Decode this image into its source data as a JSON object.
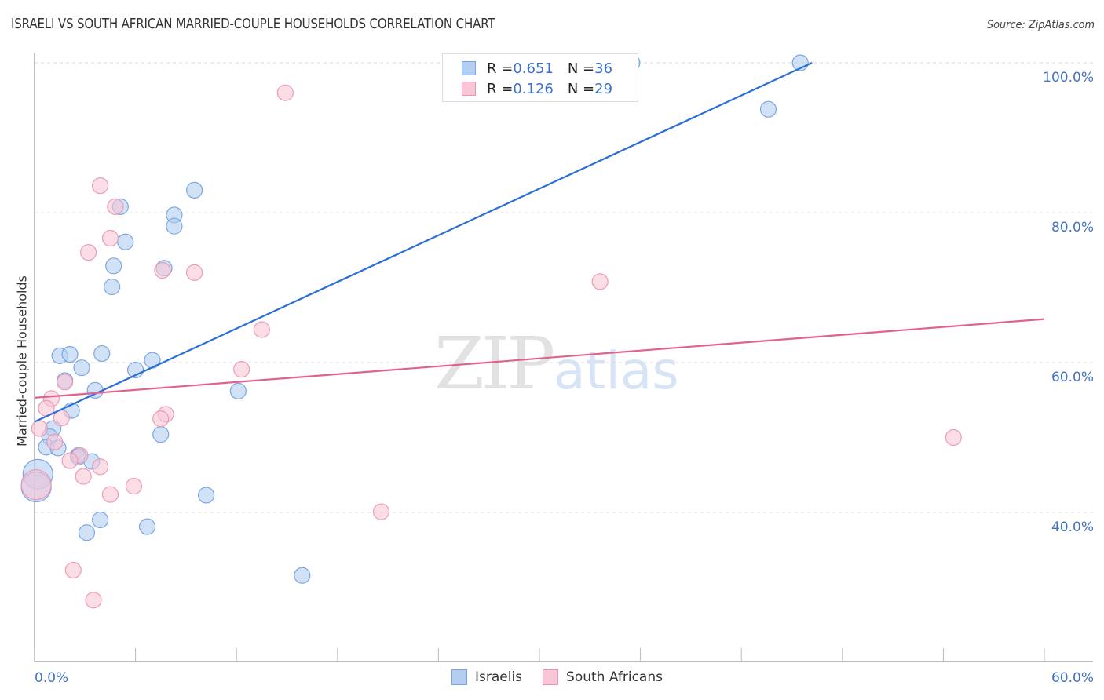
{
  "header": {
    "title": "ISRAELI VS SOUTH AFRICAN MARRIED-COUPLE HOUSEHOLDS CORRELATION CHART",
    "source": "Source: ZipAtlas.com"
  },
  "legend_box": {
    "rows": [
      {
        "r_label": "R = ",
        "r_value": "0.651",
        "n_label": "N = ",
        "n_value": "36",
        "color": "#b3cef2",
        "border": "#7ba3e0"
      },
      {
        "r_label": "R = ",
        "r_value": "0.126",
        "n_label": "N = ",
        "n_value": "29",
        "color": "#f9c6d5",
        "border": "#ea93ae"
      }
    ]
  },
  "bottom_legend": {
    "items": [
      {
        "label": "Israelis",
        "color": "#b3cef2",
        "border": "#7ba3e0"
      },
      {
        "label": "South Africans",
        "color": "#f9c6d5",
        "border": "#ea93ae"
      }
    ]
  },
  "watermark": {
    "zip": "ZIP",
    "atlas": "atlas"
  },
  "axes": {
    "y_title": "Married-couple Households",
    "y_ticks": [
      "100.0%",
      "80.0%",
      "60.0%",
      "40.0%"
    ],
    "x_min_label": "0.0%",
    "x_max_label": "60.0%"
  },
  "chart_data": {
    "type": "scatter",
    "title": "ISRAELI VS SOUTH AFRICAN MARRIED-COUPLE HOUSEHOLDS CORRELATION CHART",
    "xlabel": "",
    "ylabel": "Married-couple Households",
    "xlim": [
      0,
      60
    ],
    "ylim": [
      18,
      101.3
    ],
    "x_tick_labels": [
      "0.0%",
      "60.0%"
    ],
    "y_tick_labels": [
      "40.0%",
      "60.0%",
      "80.0%",
      "100.0%"
    ],
    "y_tick_values": [
      40,
      60,
      80,
      100
    ],
    "grid": {
      "horizontal": true,
      "vertical": false,
      "style": "dashed"
    },
    "legend_position": "bottom-center",
    "series": [
      {
        "name": "Israelis",
        "color": "#6f9de0",
        "fill": "#b3cef2",
        "R": 0.651,
        "N": 36,
        "trendline": {
          "x": [
            0,
            46.2
          ],
          "y": [
            52.1,
            100.0
          ],
          "color": "#2a6fd6"
        },
        "points": [
          {
            "x": 45.5,
            "y": 100.0
          },
          {
            "x": 35.5,
            "y": 100.0
          },
          {
            "x": 43.6,
            "y": 93.8
          },
          {
            "x": 9.5,
            "y": 83.0
          },
          {
            "x": 5.1,
            "y": 80.8
          },
          {
            "x": 8.3,
            "y": 79.7
          },
          {
            "x": 8.3,
            "y": 78.2
          },
          {
            "x": 5.4,
            "y": 76.1
          },
          {
            "x": 4.7,
            "y": 72.9
          },
          {
            "x": 7.7,
            "y": 72.6
          },
          {
            "x": 4.6,
            "y": 70.1
          },
          {
            "x": 1.5,
            "y": 60.9
          },
          {
            "x": 2.1,
            "y": 61.1
          },
          {
            "x": 4.0,
            "y": 61.2
          },
          {
            "x": 2.8,
            "y": 59.3
          },
          {
            "x": 6.0,
            "y": 59.0
          },
          {
            "x": 7.0,
            "y": 60.3
          },
          {
            "x": 1.8,
            "y": 57.6
          },
          {
            "x": 3.6,
            "y": 56.3
          },
          {
            "x": 12.1,
            "y": 56.2
          },
          {
            "x": 2.2,
            "y": 53.6
          },
          {
            "x": 1.1,
            "y": 51.2
          },
          {
            "x": 0.9,
            "y": 50.1
          },
          {
            "x": 7.5,
            "y": 50.4
          },
          {
            "x": 0.7,
            "y": 48.7
          },
          {
            "x": 1.4,
            "y": 48.6
          },
          {
            "x": 2.6,
            "y": 47.6
          },
          {
            "x": 2.6,
            "y": 47.4
          },
          {
            "x": 3.4,
            "y": 46.8
          },
          {
            "x": 0.2,
            "y": 45.1
          },
          {
            "x": 0.1,
            "y": 43.4
          },
          {
            "x": 10.2,
            "y": 42.3
          },
          {
            "x": 3.9,
            "y": 39.0
          },
          {
            "x": 3.1,
            "y": 37.3
          },
          {
            "x": 6.7,
            "y": 38.1
          },
          {
            "x": 15.9,
            "y": 31.6
          }
        ]
      },
      {
        "name": "South Africans",
        "color": "#ea93ae",
        "fill": "#f9c6d5",
        "R": 0.126,
        "N": 29,
        "trendline": {
          "x": [
            0,
            60
          ],
          "y": [
            55.3,
            65.8
          ],
          "color": "#e2628c"
        },
        "points": [
          {
            "x": 14.9,
            "y": 96.0
          },
          {
            "x": 3.9,
            "y": 83.6
          },
          {
            "x": 4.8,
            "y": 80.8
          },
          {
            "x": 4.5,
            "y": 76.6
          },
          {
            "x": 3.2,
            "y": 74.7
          },
          {
            "x": 7.6,
            "y": 72.3
          },
          {
            "x": 9.5,
            "y": 72.0
          },
          {
            "x": 33.6,
            "y": 70.8
          },
          {
            "x": 13.5,
            "y": 64.4
          },
          {
            "x": 12.3,
            "y": 59.1
          },
          {
            "x": 1.8,
            "y": 57.4
          },
          {
            "x": 1.0,
            "y": 55.2
          },
          {
            "x": 0.7,
            "y": 53.9
          },
          {
            "x": 7.8,
            "y": 53.1
          },
          {
            "x": 1.6,
            "y": 52.6
          },
          {
            "x": 7.5,
            "y": 52.5
          },
          {
            "x": 0.3,
            "y": 51.2
          },
          {
            "x": 1.2,
            "y": 49.4
          },
          {
            "x": 54.6,
            "y": 50.0
          },
          {
            "x": 2.7,
            "y": 47.6
          },
          {
            "x": 2.1,
            "y": 46.9
          },
          {
            "x": 3.9,
            "y": 46.1
          },
          {
            "x": 2.9,
            "y": 44.8
          },
          {
            "x": 5.9,
            "y": 43.5
          },
          {
            "x": 4.5,
            "y": 42.4
          },
          {
            "x": 20.6,
            "y": 40.1
          },
          {
            "x": 0.1,
            "y": 43.7
          },
          {
            "x": 2.3,
            "y": 32.3
          },
          {
            "x": 3.5,
            "y": 28.3
          }
        ]
      }
    ]
  }
}
